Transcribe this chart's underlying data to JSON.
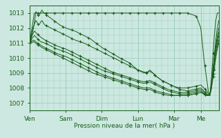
{
  "bg_color": "#cce8e0",
  "plot_bg_color": "#cce8e0",
  "line_color": "#1a5c1a",
  "grid_color": "#99ccbb",
  "tick_color": "#1a5c1a",
  "text_color": "#1a5c1a",
  "xlabel": "Pression niveau de la mer( hPa )",
  "ylim": [
    1006.5,
    1013.5
  ],
  "yticks": [
    1007,
    1008,
    1009,
    1010,
    1011,
    1012,
    1013
  ],
  "xlim": [
    0,
    252
  ],
  "day_positions": [
    0,
    48,
    96,
    144,
    192,
    228,
    252
  ],
  "day_labels": [
    "Ven",
    "Sam",
    "Dim",
    "Lun",
    "Mar",
    "Me"
  ],
  "traces": [
    [
      [
        0,
        1011.1
      ],
      [
        6,
        1013.0
      ],
      [
        48,
        1013.0
      ],
      [
        144,
        1013.0
      ],
      [
        192,
        1013.0
      ],
      [
        210,
        1013.0
      ],
      [
        222,
        1012.8
      ],
      [
        228,
        1012.0
      ],
      [
        232,
        1010.0
      ],
      [
        236,
        1008.5
      ],
      [
        238,
        1007.8
      ],
      [
        240,
        1007.5
      ],
      [
        242,
        1008.5
      ],
      [
        244,
        1010.0
      ],
      [
        246,
        1011.5
      ],
      [
        248,
        1012.5
      ],
      [
        250,
        1013.0
      ],
      [
        252,
        1013.0
      ]
    ],
    [
      [
        0,
        1011.0
      ],
      [
        5,
        1012.0
      ],
      [
        8,
        1013.1
      ],
      [
        12,
        1012.8
      ],
      [
        16,
        1013.2
      ],
      [
        18,
        1013.05
      ],
      [
        24,
        1012.8
      ],
      [
        32,
        1012.5
      ],
      [
        40,
        1012.2
      ],
      [
        48,
        1012.0
      ],
      [
        60,
        1011.8
      ],
      [
        72,
        1011.5
      ],
      [
        80,
        1011.3
      ],
      [
        88,
        1011.0
      ],
      [
        96,
        1010.7
      ],
      [
        110,
        1010.3
      ],
      [
        120,
        1010.0
      ],
      [
        132,
        1009.7
      ],
      [
        144,
        1009.2
      ],
      [
        156,
        1009.0
      ],
      [
        160,
        1009.2
      ],
      [
        164,
        1009.0
      ],
      [
        168,
        1008.8
      ],
      [
        176,
        1008.5
      ],
      [
        184,
        1008.3
      ],
      [
        192,
        1008.1
      ],
      [
        200,
        1008.0
      ],
      [
        210,
        1008.0
      ],
      [
        220,
        1008.1
      ],
      [
        228,
        1008.2
      ],
      [
        232,
        1008.0
      ],
      [
        236,
        1007.8
      ],
      [
        238,
        1007.6
      ],
      [
        240,
        1007.5
      ],
      [
        242,
        1008.0
      ],
      [
        244,
        1009.0
      ],
      [
        246,
        1010.2
      ],
      [
        248,
        1011.2
      ],
      [
        250,
        1012.0
      ],
      [
        252,
        1012.5
      ]
    ],
    [
      [
        0,
        1011.1
      ],
      [
        4,
        1012.0
      ],
      [
        8,
        1012.5
      ],
      [
        12,
        1012.2
      ],
      [
        16,
        1012.5
      ],
      [
        20,
        1012.2
      ],
      [
        28,
        1012.0
      ],
      [
        36,
        1011.8
      ],
      [
        48,
        1011.5
      ],
      [
        60,
        1011.2
      ],
      [
        72,
        1011.0
      ],
      [
        84,
        1010.7
      ],
      [
        96,
        1010.4
      ],
      [
        108,
        1010.1
      ],
      [
        120,
        1009.8
      ],
      [
        132,
        1009.5
      ],
      [
        144,
        1009.2
      ],
      [
        152,
        1009.0
      ],
      [
        160,
        1009.1
      ],
      [
        164,
        1009.0
      ],
      [
        168,
        1008.8
      ],
      [
        176,
        1008.5
      ],
      [
        184,
        1008.3
      ],
      [
        192,
        1008.1
      ],
      [
        200,
        1007.9
      ],
      [
        210,
        1007.8
      ],
      [
        220,
        1007.9
      ],
      [
        228,
        1008.0
      ],
      [
        232,
        1007.8
      ],
      [
        236,
        1007.6
      ],
      [
        238,
        1007.5
      ],
      [
        240,
        1007.5
      ],
      [
        242,
        1008.0
      ],
      [
        244,
        1009.0
      ],
      [
        246,
        1010.0
      ],
      [
        248,
        1010.8
      ],
      [
        250,
        1011.5
      ],
      [
        252,
        1012.0
      ]
    ],
    [
      [
        0,
        1011.0
      ],
      [
        3,
        1011.5
      ],
      [
        6,
        1011.8
      ],
      [
        10,
        1011.6
      ],
      [
        14,
        1011.4
      ],
      [
        20,
        1011.2
      ],
      [
        28,
        1011.0
      ],
      [
        36,
        1010.8
      ],
      [
        48,
        1010.6
      ],
      [
        60,
        1010.3
      ],
      [
        72,
        1010.0
      ],
      [
        84,
        1009.7
      ],
      [
        96,
        1009.4
      ],
      [
        108,
        1009.1
      ],
      [
        120,
        1008.9
      ],
      [
        132,
        1008.7
      ],
      [
        144,
        1008.5
      ],
      [
        152,
        1008.4
      ],
      [
        160,
        1008.5
      ],
      [
        164,
        1008.4
      ],
      [
        168,
        1008.3
      ],
      [
        176,
        1008.1
      ],
      [
        184,
        1007.9
      ],
      [
        192,
        1007.8
      ],
      [
        200,
        1007.7
      ],
      [
        210,
        1007.7
      ],
      [
        220,
        1007.8
      ],
      [
        228,
        1007.9
      ],
      [
        232,
        1007.7
      ],
      [
        236,
        1007.5
      ],
      [
        238,
        1007.5
      ],
      [
        240,
        1007.5
      ],
      [
        242,
        1008.2
      ],
      [
        244,
        1009.2
      ],
      [
        246,
        1010.0
      ],
      [
        248,
        1010.7
      ],
      [
        250,
        1011.2
      ],
      [
        252,
        1011.7
      ]
    ],
    [
      [
        0,
        1011.0
      ],
      [
        3,
        1011.3
      ],
      [
        6,
        1011.5
      ],
      [
        10,
        1011.3
      ],
      [
        14,
        1011.1
      ],
      [
        20,
        1011.0
      ],
      [
        28,
        1010.8
      ],
      [
        36,
        1010.6
      ],
      [
        48,
        1010.4
      ],
      [
        60,
        1010.1
      ],
      [
        72,
        1009.8
      ],
      [
        84,
        1009.5
      ],
      [
        96,
        1009.2
      ],
      [
        108,
        1009.0
      ],
      [
        120,
        1008.8
      ],
      [
        132,
        1008.6
      ],
      [
        144,
        1008.4
      ],
      [
        152,
        1008.3
      ],
      [
        160,
        1008.4
      ],
      [
        164,
        1008.3
      ],
      [
        168,
        1008.2
      ],
      [
        176,
        1008.0
      ],
      [
        184,
        1007.8
      ],
      [
        192,
        1007.7
      ],
      [
        200,
        1007.6
      ],
      [
        210,
        1007.6
      ],
      [
        220,
        1007.7
      ],
      [
        228,
        1007.8
      ],
      [
        232,
        1007.6
      ],
      [
        236,
        1007.5
      ],
      [
        238,
        1007.5
      ],
      [
        240,
        1007.5
      ],
      [
        242,
        1008.1
      ],
      [
        244,
        1009.0
      ],
      [
        246,
        1009.8
      ],
      [
        248,
        1010.5
      ],
      [
        250,
        1011.0
      ],
      [
        252,
        1011.5
      ]
    ],
    [
      [
        0,
        1011.0
      ],
      [
        2,
        1011.1
      ],
      [
        5,
        1011.2
      ],
      [
        10,
        1011.0
      ],
      [
        16,
        1010.8
      ],
      [
        24,
        1010.6
      ],
      [
        36,
        1010.3
      ],
      [
        48,
        1010.1
      ],
      [
        60,
        1009.8
      ],
      [
        72,
        1009.5
      ],
      [
        84,
        1009.2
      ],
      [
        96,
        1008.9
      ],
      [
        108,
        1008.7
      ],
      [
        120,
        1008.5
      ],
      [
        132,
        1008.3
      ],
      [
        144,
        1008.1
      ],
      [
        152,
        1008.0
      ],
      [
        160,
        1008.0
      ],
      [
        164,
        1007.9
      ],
      [
        168,
        1007.8
      ],
      [
        176,
        1007.7
      ],
      [
        184,
        1007.6
      ],
      [
        192,
        1007.5
      ],
      [
        200,
        1007.5
      ],
      [
        210,
        1007.5
      ],
      [
        220,
        1007.6
      ],
      [
        228,
        1007.7
      ],
      [
        232,
        1007.6
      ],
      [
        236,
        1007.5
      ],
      [
        238,
        1007.5
      ],
      [
        240,
        1007.5
      ],
      [
        242,
        1008.0
      ],
      [
        244,
        1008.8
      ],
      [
        246,
        1009.5
      ],
      [
        248,
        1010.2
      ],
      [
        250,
        1010.8
      ],
      [
        252,
        1011.2
      ]
    ],
    [
      [
        0,
        1011.0
      ],
      [
        2,
        1011.0
      ],
      [
        5,
        1011.1
      ],
      [
        10,
        1010.9
      ],
      [
        16,
        1010.7
      ],
      [
        24,
        1010.5
      ],
      [
        36,
        1010.2
      ],
      [
        48,
        1009.9
      ],
      [
        60,
        1009.6
      ],
      [
        72,
        1009.3
      ],
      [
        84,
        1009.0
      ],
      [
        96,
        1008.8
      ],
      [
        108,
        1008.6
      ],
      [
        120,
        1008.4
      ],
      [
        132,
        1008.2
      ],
      [
        144,
        1008.0
      ],
      [
        152,
        1007.9
      ],
      [
        160,
        1007.9
      ],
      [
        164,
        1007.8
      ],
      [
        168,
        1007.7
      ],
      [
        176,
        1007.6
      ],
      [
        184,
        1007.5
      ],
      [
        192,
        1007.5
      ],
      [
        200,
        1007.5
      ],
      [
        210,
        1007.5
      ],
      [
        220,
        1007.6
      ],
      [
        228,
        1007.7
      ],
      [
        232,
        1007.6
      ],
      [
        236,
        1007.5
      ],
      [
        238,
        1007.5
      ],
      [
        240,
        1007.5
      ],
      [
        242,
        1007.9
      ],
      [
        244,
        1008.6
      ],
      [
        246,
        1009.3
      ],
      [
        248,
        1010.0
      ],
      [
        250,
        1010.6
      ],
      [
        252,
        1011.0
      ]
    ]
  ]
}
